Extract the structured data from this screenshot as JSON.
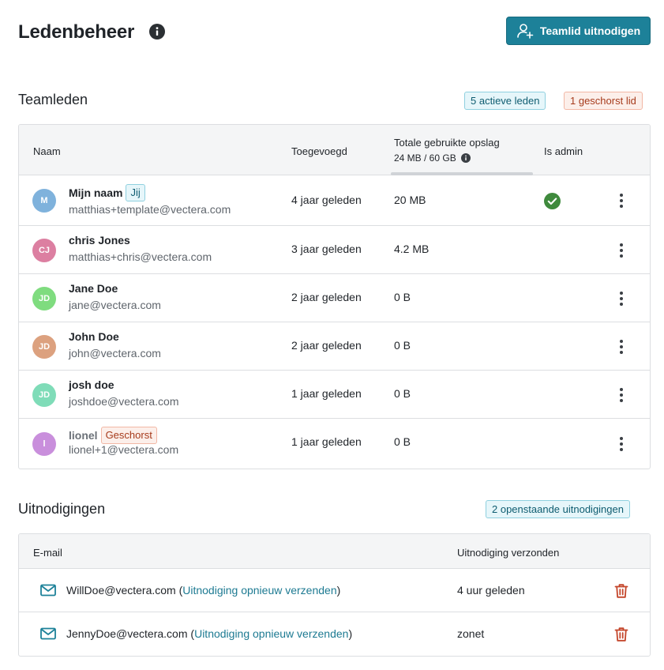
{
  "header": {
    "title": "Ledenbeheer",
    "invite_button": "Teamlid uitnodigen"
  },
  "members": {
    "title": "Teamleden",
    "active_badge": "5 actieve leden",
    "suspended_badge": "1 geschorst lid",
    "columns": {
      "name": "Naam",
      "added": "Toegevoegd",
      "storage": "Totale gebruikte opslag",
      "storage_usage": "24 MB / 60 GB",
      "admin": "Is admin"
    },
    "rows": [
      {
        "initials": "M",
        "name": "Mijn naam",
        "tag": "Jij",
        "email": "matthias+template@vectera.com",
        "added": "4 jaar geleden",
        "storage": "20 MB",
        "admin": true,
        "avatar_color": "#7fb2dc"
      },
      {
        "initials": "CJ",
        "name": "chris Jones",
        "email": "matthias+chris@vectera.com",
        "added": "3 jaar geleden",
        "storage": "4.2 MB",
        "admin": false,
        "avatar_color": "#dc7fa1"
      },
      {
        "initials": "JD",
        "name": "Jane Doe",
        "email": "jane@vectera.com",
        "added": "2 jaar geleden",
        "storage": "0 B",
        "admin": false,
        "avatar_color": "#7fdc7f"
      },
      {
        "initials": "JD",
        "name": "John Doe",
        "email": "john@vectera.com",
        "added": "2 jaar geleden",
        "storage": "0 B",
        "admin": false,
        "avatar_color": "#dca17f"
      },
      {
        "initials": "JD",
        "name": "josh doe",
        "email": "joshdoe@vectera.com",
        "added": "1 jaar geleden",
        "storage": "0 B",
        "admin": false,
        "avatar_color": "#7fdcb8"
      },
      {
        "initials": "l",
        "name": "lionel",
        "tag": "Geschorst",
        "email": "lionel+1@vectera.com",
        "added": "1 jaar geleden",
        "storage": "0 B",
        "admin": false,
        "avatar_color": "#c98fdc"
      }
    ]
  },
  "invitations": {
    "title": "Uitnodigingen",
    "pending_badge": "2 openstaande uitnodigingen",
    "columns": {
      "email": "E-mail",
      "sent": "Uitnodiging verzonden"
    },
    "rows": [
      {
        "email": "WillDoe@vectera.com",
        "resend": "Uitnodiging opnieuw verzenden",
        "sent": "4 uur geleden"
      },
      {
        "email": "JennyDoe@vectera.com",
        "resend": "Uitnodiging opnieuw verzenden",
        "sent": "zonet"
      }
    ]
  },
  "colors": {
    "accent": "#1d8199",
    "success": "#3f8a3d",
    "danger": "#c4452a"
  }
}
